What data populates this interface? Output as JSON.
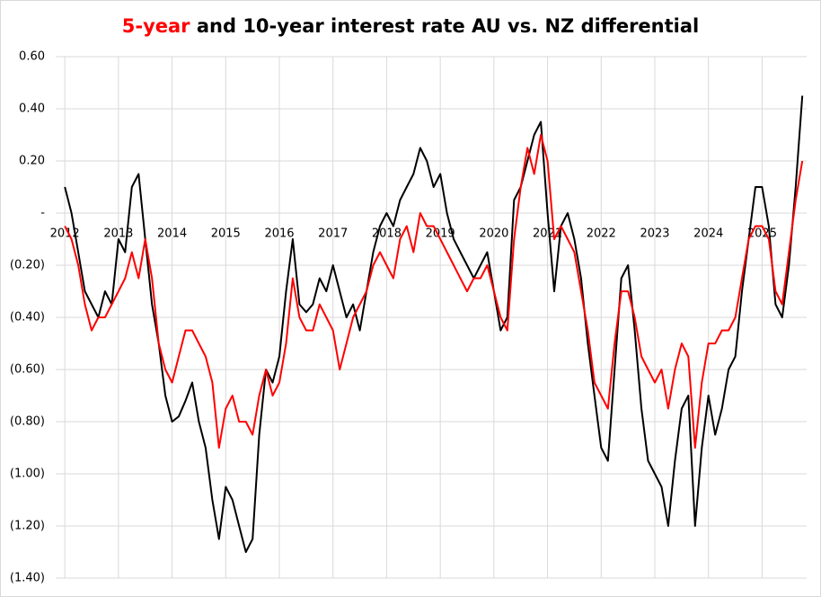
{
  "chart_data": {
    "type": "line",
    "title": [
      "5-year",
      " and 10-year interest rate AU vs. NZ differential"
    ],
    "xlim": [
      2011.83,
      2025.83
    ],
    "xticks": [
      2012,
      2013,
      2014,
      2015,
      2016,
      2017,
      2018,
      2019,
      2020,
      2021,
      2022,
      2023,
      2024,
      2025
    ],
    "ylim": [
      -1.4,
      0.6
    ],
    "yticks": [
      {
        "value": 0.6,
        "label": "0.60"
      },
      {
        "value": 0.4,
        "label": "0.40"
      },
      {
        "value": 0.2,
        "label": "0.20"
      },
      {
        "value": 0,
        "label": "-"
      },
      {
        "value": -0.2,
        "label": "(0.20)"
      },
      {
        "value": -0.4,
        "label": "(0.40)"
      },
      {
        "value": -0.6,
        "label": "(0.60)"
      },
      {
        "value": -0.8,
        "label": "(0.80)"
      },
      {
        "value": -1.0,
        "label": "(1.00)"
      },
      {
        "value": -1.2,
        "label": "(1.20)"
      },
      {
        "value": -1.4,
        "label": "(1.40)"
      }
    ],
    "grid": true,
    "x": [
      2012,
      2012.125,
      2012.25,
      2012.375,
      2012.5,
      2012.625,
      2012.75,
      2012.875,
      2013,
      2013.125,
      2013.25,
      2013.375,
      2013.5,
      2013.625,
      2013.75,
      2013.875,
      2014,
      2014.125,
      2014.25,
      2014.375,
      2014.5,
      2014.625,
      2014.75,
      2014.875,
      2015,
      2015.125,
      2015.25,
      2015.375,
      2015.5,
      2015.625,
      2015.75,
      2015.875,
      2016,
      2016.125,
      2016.25,
      2016.375,
      2016.5,
      2016.625,
      2016.75,
      2016.875,
      2017,
      2017.125,
      2017.25,
      2017.375,
      2017.5,
      2017.625,
      2017.75,
      2017.875,
      2018,
      2018.125,
      2018.25,
      2018.375,
      2018.5,
      2018.625,
      2018.75,
      2018.875,
      2019,
      2019.125,
      2019.25,
      2019.375,
      2019.5,
      2019.625,
      2019.75,
      2019.875,
      2020,
      2020.125,
      2020.25,
      2020.375,
      2020.5,
      2020.625,
      2020.75,
      2020.875,
      2021,
      2021.125,
      2021.25,
      2021.375,
      2021.5,
      2021.625,
      2021.75,
      2021.875,
      2022,
      2022.125,
      2022.25,
      2022.375,
      2022.5,
      2022.625,
      2022.75,
      2022.875,
      2023,
      2023.125,
      2023.25,
      2023.375,
      2023.5,
      2023.625,
      2023.75,
      2023.875,
      2024,
      2024.125,
      2024.25,
      2024.375,
      2024.5,
      2024.625,
      2024.75,
      2024.875,
      2025,
      2025.125,
      2025.25,
      2025.375,
      2025.5,
      2025.625,
      2025.75
    ],
    "series": [
      {
        "color": "#ff0000",
        "values": [
          -0.05,
          -0.1,
          -0.2,
          -0.35,
          -0.45,
          -0.4,
          -0.4,
          -0.35,
          -0.3,
          -0.25,
          -0.15,
          -0.25,
          -0.1,
          -0.25,
          -0.5,
          -0.6,
          -0.65,
          -0.55,
          -0.45,
          -0.45,
          -0.5,
          -0.55,
          -0.65,
          -0.9,
          -0.75,
          -0.7,
          -0.8,
          -0.8,
          -0.85,
          -0.7,
          -0.6,
          -0.7,
          -0.65,
          -0.5,
          -0.25,
          -0.4,
          -0.45,
          -0.45,
          -0.35,
          -0.4,
          -0.45,
          -0.6,
          -0.5,
          -0.4,
          -0.35,
          -0.3,
          -0.2,
          -0.15,
          -0.2,
          -0.25,
          -0.1,
          -0.05,
          -0.15,
          0.0,
          -0.05,
          -0.05,
          -0.1,
          -0.15,
          -0.2,
          -0.25,
          -0.3,
          -0.25,
          -0.25,
          -0.2,
          -0.3,
          -0.4,
          -0.45,
          -0.1,
          0.1,
          0.25,
          0.15,
          0.3,
          0.2,
          -0.1,
          -0.05,
          -0.1,
          -0.15,
          -0.3,
          -0.45,
          -0.65,
          -0.7,
          -0.75,
          -0.5,
          -0.3,
          -0.3,
          -0.4,
          -0.55,
          -0.6,
          -0.65,
          -0.6,
          -0.75,
          -0.6,
          -0.5,
          -0.55,
          -0.9,
          -0.65,
          -0.5,
          -0.5,
          -0.45,
          -0.45,
          -0.4,
          -0.25,
          -0.1,
          -0.05,
          -0.05,
          -0.1,
          -0.3,
          -0.35,
          -0.15,
          0.05,
          0.2
        ]
      },
      {
        "color": "#000000",
        "values": [
          0.1,
          0.0,
          -0.15,
          -0.3,
          -0.35,
          -0.4,
          -0.3,
          -0.35,
          -0.1,
          -0.15,
          0.1,
          0.15,
          -0.1,
          -0.35,
          -0.5,
          -0.7,
          -0.8,
          -0.78,
          -0.72,
          -0.65,
          -0.8,
          -0.9,
          -1.1,
          -1.25,
          -1.05,
          -1.1,
          -1.2,
          -1.3,
          -1.25,
          -0.85,
          -0.6,
          -0.65,
          -0.55,
          -0.3,
          -0.1,
          -0.35,
          -0.38,
          -0.35,
          -0.25,
          -0.3,
          -0.2,
          -0.3,
          -0.4,
          -0.35,
          -0.45,
          -0.3,
          -0.15,
          -0.05,
          0.0,
          -0.05,
          0.05,
          0.1,
          0.15,
          0.25,
          0.2,
          0.1,
          0.15,
          0.0,
          -0.1,
          -0.15,
          -0.2,
          -0.25,
          -0.2,
          -0.15,
          -0.3,
          -0.45,
          -0.4,
          0.05,
          0.1,
          0.2,
          0.3,
          0.35,
          0.0,
          -0.3,
          -0.05,
          0.0,
          -0.1,
          -0.25,
          -0.5,
          -0.7,
          -0.9,
          -0.95,
          -0.6,
          -0.25,
          -0.2,
          -0.45,
          -0.75,
          -0.95,
          -1.0,
          -1.05,
          -1.2,
          -0.95,
          -0.75,
          -0.7,
          -1.2,
          -0.9,
          -0.7,
          -0.85,
          -0.75,
          -0.6,
          -0.55,
          -0.3,
          -0.1,
          0.1,
          0.1,
          -0.05,
          -0.35,
          -0.4,
          -0.2,
          0.1,
          0.45
        ]
      }
    ]
  }
}
